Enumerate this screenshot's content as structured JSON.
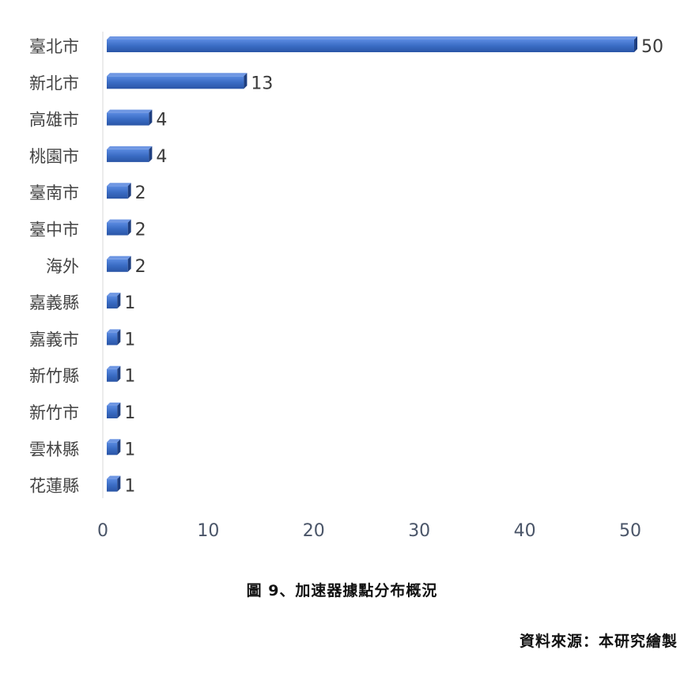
{
  "chart_data": {
    "type": "bar",
    "orientation": "horizontal",
    "categories": [
      "臺北市",
      "新北市",
      "高雄市",
      "桃園市",
      "臺南市",
      "臺中市",
      "海外",
      "嘉義縣",
      "嘉義市",
      "新竹縣",
      "新竹市",
      "雲林縣",
      "花蓮縣"
    ],
    "values": [
      50,
      13,
      4,
      4,
      2,
      2,
      2,
      1,
      1,
      1,
      1,
      1,
      1
    ],
    "xlim": [
      0,
      50
    ],
    "xticks": [
      0,
      10,
      20,
      30,
      40,
      50
    ],
    "data_labels": true,
    "grid": false,
    "legend": false,
    "bar_color": "#3a6cc4"
  },
  "figure": {
    "caption": "圖 9、加速器據點分布概況",
    "source": "資料來源：本研究繪製"
  }
}
